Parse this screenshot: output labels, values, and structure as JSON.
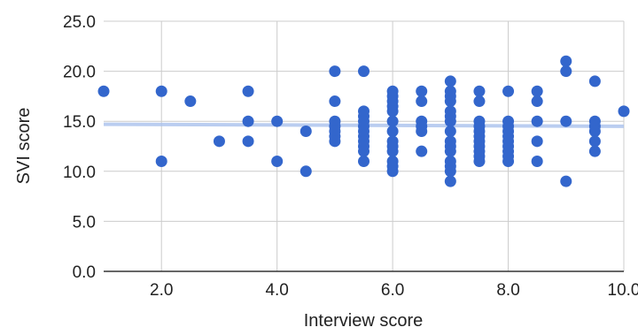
{
  "chart_data": {
    "type": "scatter",
    "title": "",
    "xlabel": "Interview score",
    "ylabel": "SVI score",
    "xlim": [
      1,
      10
    ],
    "ylim": [
      0,
      25
    ],
    "x_ticks": [
      "2.0",
      "4.0",
      "6.0",
      "8.0",
      "10.0"
    ],
    "y_ticks": [
      "0.0",
      "5.0",
      "10.0",
      "15.0",
      "20.0",
      "25.0"
    ],
    "grid": true,
    "legend": "none",
    "colors": {
      "points": "#3366cc",
      "trendline": "#a9c0ec",
      "grid": "#cccccc",
      "axis": "#333333"
    },
    "trendline": {
      "type": "linear",
      "x": [
        1,
        10
      ],
      "y": [
        14.7,
        14.5
      ]
    },
    "series": [
      {
        "x": [
          1,
          2,
          2,
          2.5,
          3,
          3.5,
          3.5,
          3.5,
          4,
          4,
          4.5,
          4.5,
          5,
          5,
          5,
          5,
          5,
          5,
          5,
          5.5,
          5.5,
          5.5,
          5.5,
          5.5,
          5.5,
          5.5,
          5.5,
          5.5,
          5.5,
          5.5,
          6,
          6,
          6,
          6,
          6,
          6,
          6,
          6,
          6,
          6,
          6,
          6,
          6,
          6.5,
          6.5,
          6.5,
          6.5,
          6.5,
          6.5,
          7,
          7,
          7,
          7,
          7,
          7,
          7,
          7,
          7,
          7,
          7,
          7,
          7,
          7,
          7,
          7.5,
          7.5,
          7.5,
          7.5,
          7.5,
          7.5,
          7.5,
          7.5,
          7.5,
          7.5,
          7.5,
          8,
          8,
          8,
          8,
          8,
          8,
          8,
          8,
          8,
          8,
          8.5,
          8.5,
          8.5,
          8.5,
          8.5,
          9,
          9,
          9,
          9,
          9.5,
          9.5,
          9.5,
          9.5,
          9.5,
          9.5,
          10
        ],
        "y": [
          18,
          18,
          11,
          17,
          13,
          18,
          15,
          13,
          15,
          11,
          14,
          10,
          20,
          17,
          15,
          14.5,
          14,
          13.5,
          13,
          20,
          16,
          15.5,
          15,
          14.5,
          14,
          13.5,
          13,
          12.5,
          12,
          11,
          18,
          17.5,
          17,
          16.5,
          16,
          15,
          14,
          13,
          12.5,
          12,
          11,
          10.5,
          10,
          18,
          17,
          15,
          14.5,
          14,
          12,
          19,
          18,
          17.5,
          17,
          16,
          15.5,
          15,
          14,
          13,
          12.5,
          12,
          11,
          10.5,
          10,
          9,
          18,
          17,
          15,
          14.5,
          14,
          13.5,
          13,
          12.5,
          12,
          11.5,
          11,
          18,
          15,
          14.5,
          14,
          13.5,
          13,
          12.5,
          12,
          11.5,
          11,
          18,
          17,
          15,
          13,
          11,
          21,
          20,
          15,
          9,
          19,
          15,
          14.5,
          14,
          13,
          12,
          16
        ]
      }
    ]
  }
}
